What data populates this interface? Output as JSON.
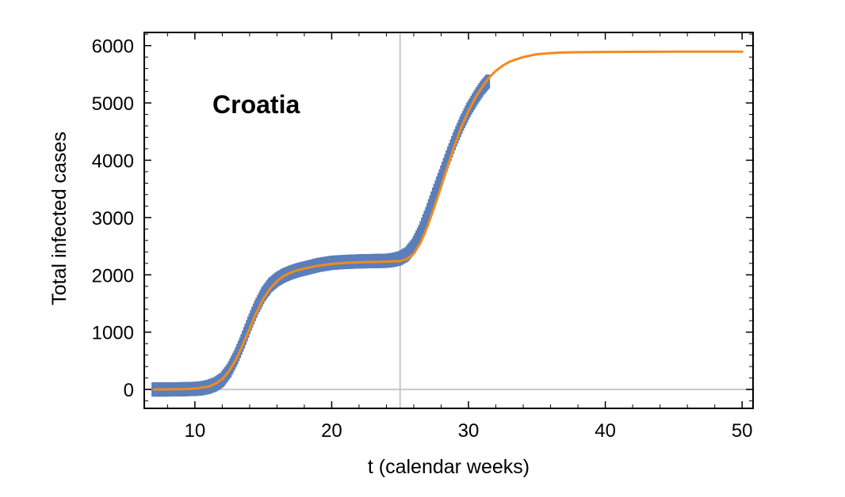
{
  "chart_data": {
    "type": "line",
    "xlabel": "t (calendar weeks)",
    "ylabel": "Total infected cases",
    "annotation": "Croatia",
    "xlim": [
      6.3,
      50.8
    ],
    "ylim": [
      -330,
      6230
    ],
    "xticks": [
      10,
      20,
      30,
      40,
      50
    ],
    "yticks": [
      0,
      1000,
      2000,
      3000,
      4000,
      5000,
      6000
    ],
    "reference_lines": {
      "x": 25,
      "y": 0
    },
    "series": [
      {
        "style": "data-markers",
        "color": "#5b7fb9",
        "x": [
          7,
          8,
          9,
          10,
          10.5,
          11,
          11.5,
          12,
          12.5,
          13,
          13.5,
          14,
          14.5,
          15,
          15.5,
          16,
          16.5,
          17,
          17.5,
          18,
          18.5,
          19,
          19.5,
          20,
          21,
          22,
          23,
          24,
          24.5,
          25,
          25.5,
          26,
          26.5,
          27,
          27.5,
          28,
          28.5,
          29,
          29.5,
          30,
          30.5,
          31,
          31.5
        ],
        "y": [
          0,
          0,
          3,
          10,
          20,
          45,
          90,
          170,
          330,
          560,
          840,
          1150,
          1430,
          1660,
          1820,
          1920,
          1990,
          2040,
          2080,
          2110,
          2140,
          2170,
          2190,
          2210,
          2225,
          2235,
          2240,
          2245,
          2260,
          2290,
          2360,
          2510,
          2750,
          3060,
          3400,
          3720,
          4050,
          4360,
          4640,
          4880,
          5080,
          5260,
          5400
        ]
      },
      {
        "style": "fit-curve",
        "color": "#f28a1e",
        "x": [
          7,
          9,
          10,
          11,
          11.5,
          12,
          12.5,
          13,
          13.5,
          14,
          14.5,
          15,
          15.5,
          16,
          16.5,
          17,
          17.5,
          18,
          19,
          20,
          21,
          22,
          23,
          24,
          25,
          25.5,
          26,
          26.5,
          27,
          27.5,
          28,
          28.5,
          29,
          29.5,
          30,
          30.5,
          31,
          31.5,
          32,
          32.5,
          33,
          34,
          35,
          36,
          37,
          38,
          40,
          42,
          45,
          50
        ],
        "y": [
          0,
          5,
          15,
          50,
          100,
          180,
          320,
          520,
          780,
          1060,
          1340,
          1580,
          1760,
          1890,
          1980,
          2040,
          2080,
          2110,
          2160,
          2190,
          2210,
          2220,
          2225,
          2230,
          2240,
          2275,
          2370,
          2560,
          2840,
          3180,
          3540,
          3910,
          4270,
          4590,
          4860,
          5090,
          5280,
          5440,
          5560,
          5650,
          5720,
          5800,
          5850,
          5870,
          5880,
          5885,
          5890,
          5892,
          5894,
          5895
        ]
      }
    ]
  }
}
